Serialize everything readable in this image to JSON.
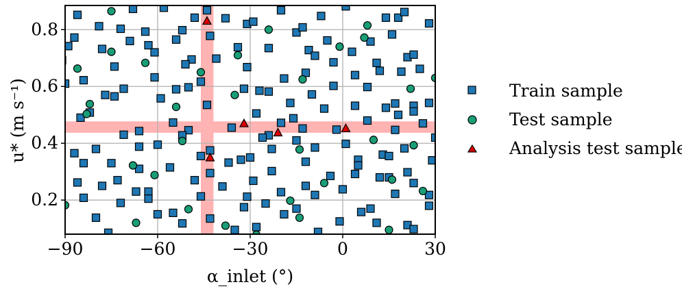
{
  "chart_data": {
    "type": "scatter",
    "xlabel": "α_inlet (°)",
    "ylabel": "u* (m s⁻¹)",
    "xlim": [
      -90,
      30
    ],
    "ylim": [
      0.08,
      0.885
    ],
    "xticks": [
      -90,
      -60,
      -30,
      0,
      30
    ],
    "xtick_labels": [
      "−90",
      "−60",
      "−30",
      "0",
      "30"
    ],
    "yticks": [
      0.2,
      0.4,
      0.6,
      0.8
    ],
    "ytick_labels": [
      "0.2",
      "0.4",
      "0.6",
      "0.8"
    ],
    "grid": true,
    "legend_position": "right, outside plot",
    "highlight_bands": {
      "vertical": [
        -46.0,
        -41.9
      ],
      "horizontal": [
        0.437,
        0.477
      ],
      "color": "#ffb3b3"
    },
    "series": [
      {
        "name": "Train sample",
        "marker": "square",
        "color": "#1f77b4",
        "points": [
          [
            -86,
            0.852
          ],
          [
            -79,
            0.812
          ],
          [
            -72,
            0.803
          ],
          [
            -68,
            0.873
          ],
          [
            -64,
            0.793
          ],
          [
            -58,
            0.877
          ],
          [
            -52,
            0.798
          ],
          [
            -48,
            0.842
          ],
          [
            -44,
            0.868
          ],
          [
            -38,
            0.84
          ],
          [
            -31,
            0.82
          ],
          [
            -29,
            0.828
          ],
          [
            -20,
            0.868
          ],
          [
            -15,
            0.79
          ],
          [
            -13,
            0.808
          ],
          [
            -7,
            0.848
          ],
          [
            1,
            0.882
          ],
          [
            14,
            0.842
          ],
          [
            18,
            0.842
          ],
          [
            20,
            0.862
          ],
          [
            28,
            0.822
          ],
          [
            -89,
            0.742
          ],
          [
            -87,
            0.772
          ],
          [
            -78,
            0.732
          ],
          [
            -74,
            0.67
          ],
          [
            -69,
            0.76
          ],
          [
            -63,
            0.745
          ],
          [
            -61,
            0.72
          ],
          [
            -54,
            0.765
          ],
          [
            -49,
            0.695
          ],
          [
            -43,
            0.778
          ],
          [
            -41,
            0.698
          ],
          [
            -34,
            0.738
          ],
          [
            -31,
            0.668
          ],
          [
            -24,
            0.735
          ],
          [
            -19,
            0.628
          ],
          [
            -11,
            0.728
          ],
          [
            -9,
            0.708
          ],
          [
            -5,
            0.762
          ],
          [
            -3,
            0.685
          ],
          [
            3,
            0.722
          ],
          [
            4,
            0.64
          ],
          [
            9,
            0.758
          ],
          [
            11,
            0.683
          ],
          [
            12,
            0.655
          ],
          [
            16,
            0.783
          ],
          [
            19,
            0.652
          ],
          [
            21,
            0.703
          ],
          [
            23,
            0.712
          ],
          [
            25,
            0.662
          ],
          [
            -91,
            0.692
          ],
          [
            -90,
            0.61
          ],
          [
            -84,
            0.622
          ],
          [
            -77,
            0.57
          ],
          [
            -74,
            0.565
          ],
          [
            -71,
            0.592
          ],
          [
            -61,
            0.632
          ],
          [
            -59,
            0.558
          ],
          [
            -54,
            0.59
          ],
          [
            -51,
            0.678
          ],
          [
            -50,
            0.597
          ],
          [
            -46,
            0.617
          ],
          [
            -32,
            0.592
          ],
          [
            -27,
            0.585
          ],
          [
            -24,
            0.582
          ],
          [
            -17,
            0.542
          ],
          [
            -12,
            0.648
          ],
          [
            -10,
            0.572
          ],
          [
            -3,
            0.602
          ],
          [
            4,
            0.532
          ],
          [
            8,
            0.598
          ],
          [
            14,
            0.525
          ],
          [
            17,
            0.54
          ],
          [
            23,
            0.532
          ],
          [
            28,
            0.542
          ],
          [
            -85,
            0.49
          ],
          [
            -82,
            0.508
          ],
          [
            -66,
            0.443
          ],
          [
            -55,
            0.473
          ],
          [
            -50,
            0.446
          ],
          [
            -44,
            0.535
          ],
          [
            -36,
            0.455
          ],
          [
            -28,
            0.505
          ],
          [
            -24,
            0.428
          ],
          [
            -20,
            0.472
          ],
          [
            -16,
            0.488
          ],
          [
            -13,
            0.452
          ],
          [
            -2,
            0.448
          ],
          [
            -6,
            0.522
          ],
          [
            8,
            0.48
          ],
          [
            17,
            0.447
          ],
          [
            18,
            0.5
          ],
          [
            23,
            0.512
          ],
          [
            26,
            0.47
          ],
          [
            30,
            0.42
          ],
          [
            -71,
            0.43
          ],
          [
            -66,
            0.388
          ],
          [
            -60,
            0.395
          ],
          [
            -52,
            0.428
          ],
          [
            -46,
            0.355
          ],
          [
            -43,
            0.375
          ],
          [
            -37,
            0.332
          ],
          [
            -33,
            0.342
          ],
          [
            -30,
            0.35
          ],
          [
            -26,
            0.42
          ],
          [
            -23,
            0.38
          ],
          [
            -15,
            0.41
          ],
          [
            -12,
            0.335
          ],
          [
            -9,
            0.385
          ],
          [
            1,
            0.398
          ],
          [
            5,
            0.342
          ],
          [
            13,
            0.36
          ],
          [
            15,
            0.355
          ],
          [
            20,
            0.382
          ],
          [
            29,
            0.34
          ],
          [
            -87,
            0.365
          ],
          [
            -84,
            0.33
          ],
          [
            -80,
            0.38
          ],
          [
            -75,
            0.33
          ],
          [
            -73,
            0.27
          ],
          [
            -66,
            0.31
          ],
          [
            -63,
            0.23
          ],
          [
            -56,
            0.315
          ],
          [
            -48,
            0.27
          ],
          [
            -43,
            0.295
          ],
          [
            -39,
            0.248
          ],
          [
            -31,
            0.212
          ],
          [
            -29,
            0.268
          ],
          [
            -23,
            0.302
          ],
          [
            -20,
            0.228
          ],
          [
            -12,
            0.25
          ],
          [
            -9,
            0.218
          ],
          [
            -4,
            0.285
          ],
          [
            0,
            0.238
          ],
          [
            4,
            0.292
          ],
          [
            5,
            0.322
          ],
          [
            12,
            0.28
          ],
          [
            15,
            0.28
          ],
          [
            17,
            0.222
          ],
          [
            21,
            0.298
          ],
          [
            23,
            0.26
          ],
          [
            28,
            0.218
          ],
          [
            -86,
            0.262
          ],
          [
            -84,
            0.208
          ],
          [
            -80,
            0.138
          ],
          [
            -78,
            0.25
          ],
          [
            -76,
            0.085
          ],
          [
            -72,
            0.19
          ],
          [
            -67,
            0.23
          ],
          [
            -63,
            0.205
          ],
          [
            -60,
            0.15
          ],
          [
            -55,
            0.155
          ],
          [
            -52,
            0.118
          ],
          [
            -46,
            0.213
          ],
          [
            -43,
            0.135
          ],
          [
            -35,
            0.095
          ],
          [
            -32,
            0.175
          ],
          [
            -28,
            0.105
          ],
          [
            -25,
            0.188
          ],
          [
            -19,
            0.15
          ],
          [
            -15,
            0.17
          ],
          [
            -8,
            0.088
          ],
          [
            -1,
            0.125
          ],
          [
            6,
            0.158
          ],
          [
            9,
            0.17
          ],
          [
            11,
            0.12
          ],
          [
            21,
            0.112
          ],
          [
            23,
            0.098
          ],
          [
            28,
            0.18
          ]
        ]
      },
      {
        "name": "Test sample",
        "marker": "circle",
        "color": "#1a9e77",
        "points": [
          [
            -75,
            0.865
          ],
          [
            -24,
            0.8
          ],
          [
            8,
            0.815
          ],
          [
            -34,
            0.71
          ],
          [
            -86,
            0.663
          ],
          [
            -75,
            0.722
          ],
          [
            -64,
            0.683
          ],
          [
            -46,
            0.65
          ],
          [
            -35,
            0.57
          ],
          [
            -13,
            0.625
          ],
          [
            -1,
            0.74
          ],
          [
            7,
            0.772
          ],
          [
            22,
            0.592
          ],
          [
            30,
            0.63
          ],
          [
            -83,
            0.503
          ],
          [
            -82,
            0.538
          ],
          [
            -54,
            0.528
          ],
          [
            -52,
            0.408
          ],
          [
            -14,
            0.378
          ],
          [
            10,
            0.412
          ],
          [
            23,
            0.393
          ],
          [
            -68,
            0.322
          ],
          [
            -61,
            0.288
          ],
          [
            -6,
            0.26
          ],
          [
            16,
            0.272
          ],
          [
            -90,
            0.182
          ],
          [
            -67,
            0.12
          ],
          [
            -50,
            0.168
          ],
          [
            -38,
            0.11
          ],
          [
            -17,
            0.198
          ],
          [
            -14,
            0.138
          ],
          [
            -28,
            0.078
          ],
          [
            15,
            0.095
          ],
          [
            26,
            0.232
          ]
        ]
      },
      {
        "name": "Analysis test sample",
        "marker": "triangle",
        "color": "#dd0000",
        "points": [
          [
            -44,
            0.831
          ],
          [
            -32,
            0.47
          ],
          [
            -21,
            0.438
          ],
          [
            -43,
            0.35
          ],
          [
            1,
            0.453
          ]
        ]
      }
    ]
  },
  "legend": {
    "items": [
      {
        "label": "Train sample"
      },
      {
        "label": "Test sample"
      },
      {
        "label": "Analysis test sample"
      }
    ]
  }
}
